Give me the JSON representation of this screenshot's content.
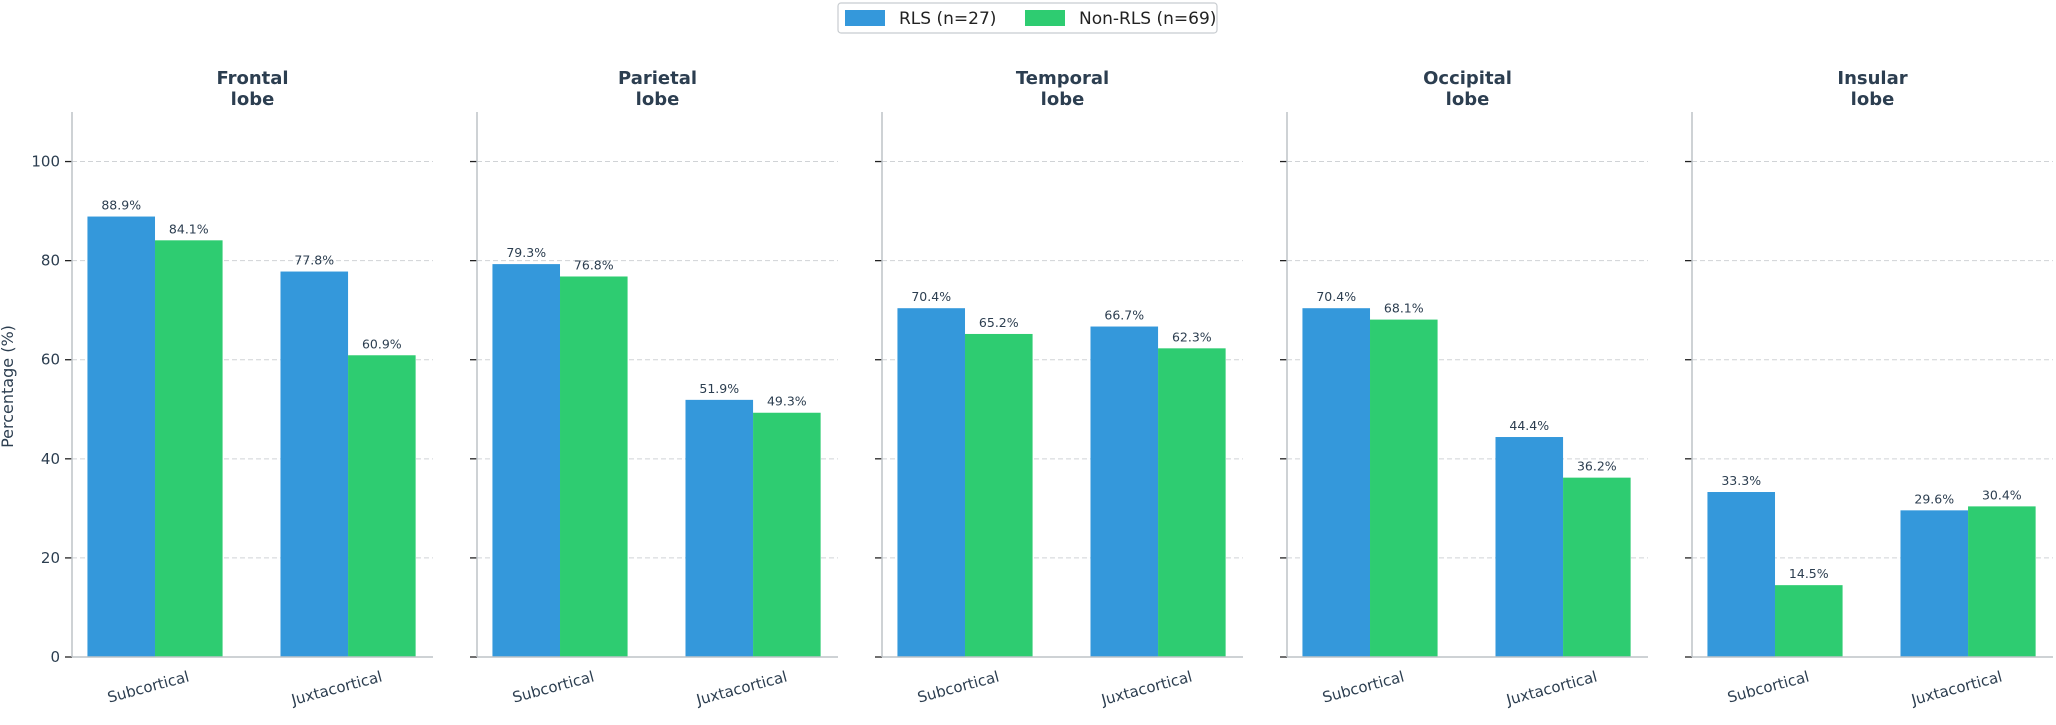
{
  "chart_data": {
    "type": "bar",
    "ylabel": "Percentage (%)",
    "ylim": [
      0,
      110
    ],
    "xlim": [
      -0.43,
      1.44
    ],
    "yticks": [
      0,
      20,
      40,
      60,
      80,
      100
    ],
    "grid": "y-dashed",
    "legend_placement": "top-center",
    "categories": [
      "Subcortical",
      "Juxtacortical"
    ],
    "series_meta": [
      {
        "name": "RLS (n=27)",
        "color": "#3498db"
      },
      {
        "name": "Non-RLS (n=69)",
        "color": "#2ecc71"
      }
    ],
    "panels": [
      {
        "title": [
          "Frontal",
          "lobe"
        ],
        "series": [
          {
            "name": "RLS (n=27)",
            "values": [
              88.9,
              77.8
            ]
          },
          {
            "name": "Non-RLS (n=69)",
            "values": [
              84.1,
              60.9
            ]
          }
        ]
      },
      {
        "title": [
          "Parietal",
          "lobe"
        ],
        "series": [
          {
            "name": "RLS (n=27)",
            "values": [
              79.3,
              51.9
            ]
          },
          {
            "name": "Non-RLS (n=69)",
            "values": [
              76.8,
              49.3
            ]
          }
        ]
      },
      {
        "title": [
          "Temporal",
          "lobe"
        ],
        "series": [
          {
            "name": "RLS (n=27)",
            "values": [
              70.4,
              66.7
            ]
          },
          {
            "name": "Non-RLS (n=69)",
            "values": [
              65.2,
              62.3
            ]
          }
        ]
      },
      {
        "title": [
          "Occipital",
          "lobe"
        ],
        "series": [
          {
            "name": "RLS (n=27)",
            "values": [
              70.4,
              44.4
            ]
          },
          {
            "name": "Non-RLS (n=69)",
            "values": [
              68.1,
              36.2
            ]
          }
        ]
      },
      {
        "title": [
          "Insular",
          "lobe"
        ],
        "series": [
          {
            "name": "RLS (n=27)",
            "values": [
              33.3,
              29.6
            ]
          },
          {
            "name": "Non-RLS (n=69)",
            "values": [
              14.5,
              30.4
            ]
          }
        ]
      }
    ],
    "value_label_suffix": "%"
  }
}
